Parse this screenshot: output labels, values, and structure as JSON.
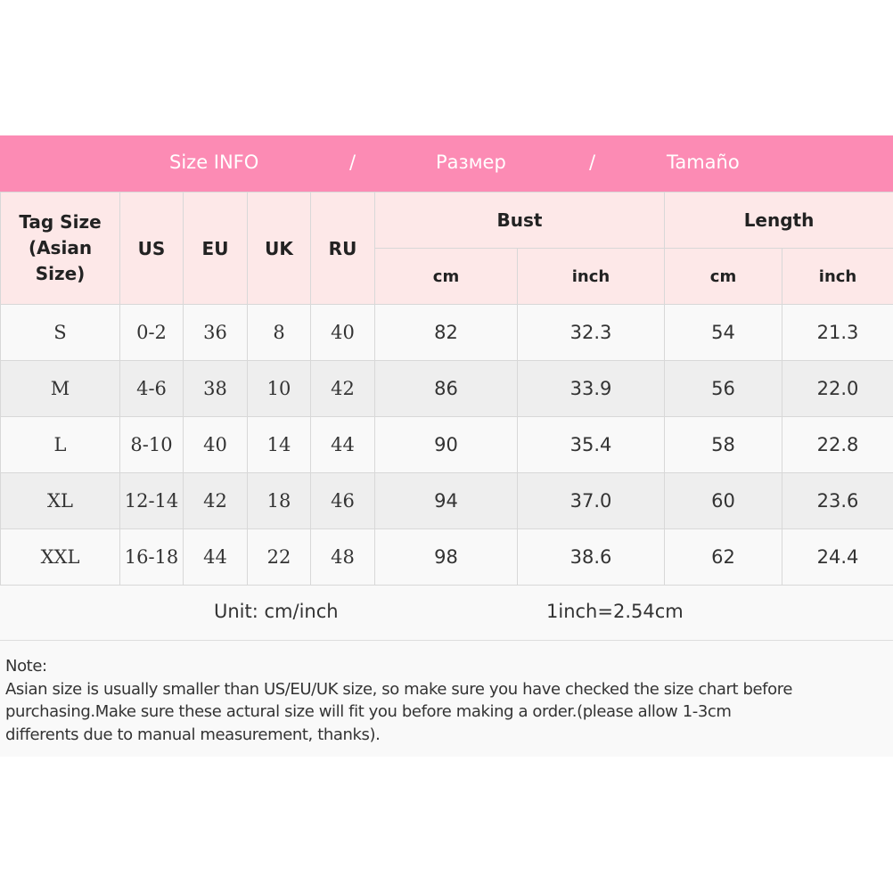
{
  "banner": {
    "title_en": "Size INFO",
    "sep1": "/",
    "title_ru": "Размер",
    "sep2": "/",
    "title_es": "Tamaño"
  },
  "colors": {
    "banner": "#fc8bb4",
    "header_bg": "#fde8e8"
  },
  "headers": {
    "tag": "Tag Size (Asian Size)",
    "us": "US",
    "eu": "EU",
    "uk": "UK",
    "ru": "RU",
    "bust": "Bust",
    "length": "Length",
    "bust_cm": "cm",
    "bust_inch": "inch",
    "length_cm": "cm",
    "length_inch": "inch"
  },
  "rows": [
    [
      "S",
      "0-2",
      "36",
      "8",
      "40",
      "82",
      "32.3",
      "54",
      "21.3"
    ],
    [
      "M",
      "4-6",
      "38",
      "10",
      "42",
      "86",
      "33.9",
      "56",
      "22.0"
    ],
    [
      "L",
      "8-10",
      "40",
      "14",
      "44",
      "90",
      "35.4",
      "58",
      "22.8"
    ],
    [
      "XL",
      "12-14",
      "42",
      "18",
      "46",
      "94",
      "37.0",
      "60",
      "23.6"
    ],
    [
      "XXL",
      "16-18",
      "44",
      "22",
      "48",
      "98",
      "38.6",
      "62",
      "24.4"
    ]
  ],
  "unit": {
    "label": "Unit: cm/inch",
    "conversion": "1inch=2.54cm"
  },
  "note": {
    "title": "Note:",
    "line1": "Asian size is usually smaller than US/EU/UK size, so make sure you have checked the size chart before",
    "line2": "purchasing.Make sure these actural size will fit you before making a order.(please allow 1-3cm",
    "line3": "differents due to manual measurement, thanks)."
  }
}
